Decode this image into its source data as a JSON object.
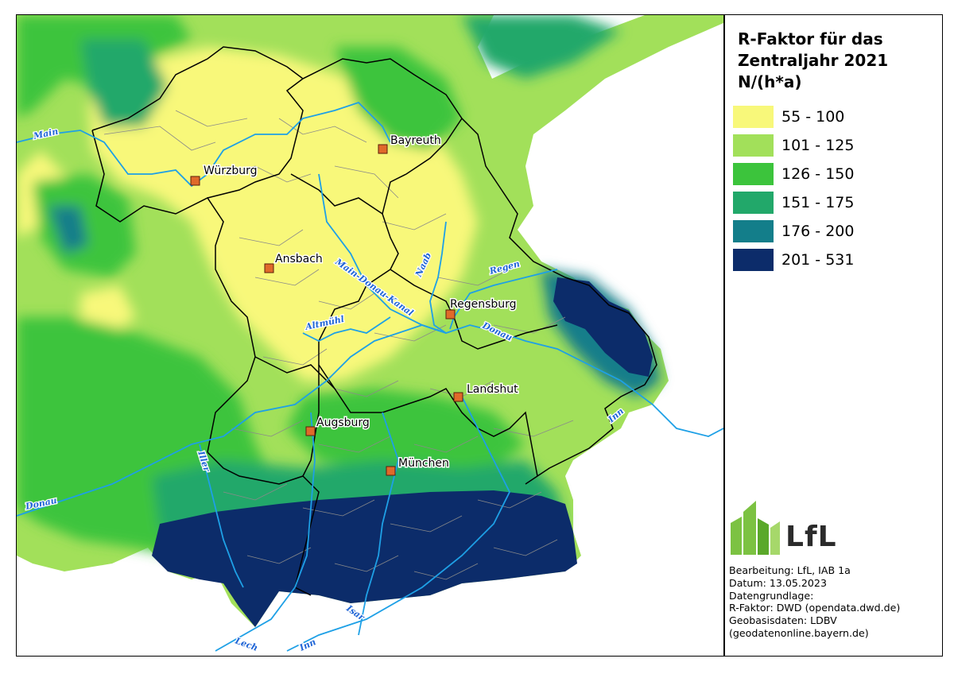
{
  "legend": {
    "title": "R-Faktor für das\nZentraljahr 2021\nN/(h*a)",
    "classes": [
      {
        "label": "55 - 100",
        "color": "#f8f87a"
      },
      {
        "label": "101 - 125",
        "color": "#a2e05a"
      },
      {
        "label": "126 - 150",
        "color": "#3cc43c"
      },
      {
        "label": "151 - 175",
        "color": "#22a86a"
      },
      {
        "label": "176 - 200",
        "color": "#137e8a"
      },
      {
        "label": "201 - 531",
        "color": "#0c2c6a"
      }
    ]
  },
  "cities": [
    {
      "name": "Bayreuth"
    },
    {
      "name": "Würzburg"
    },
    {
      "name": "Ansbach"
    },
    {
      "name": "Regensburg"
    },
    {
      "name": "Landshut"
    },
    {
      "name": "Augsburg"
    },
    {
      "name": "München"
    }
  ],
  "rivers": [
    {
      "name": "Main"
    },
    {
      "name": "Main-Donau-Kanal"
    },
    {
      "name": "Naab"
    },
    {
      "name": "Regen"
    },
    {
      "name": "Altmühl"
    },
    {
      "name": "Donau"
    },
    {
      "name": "Inn"
    },
    {
      "name": "Iller"
    },
    {
      "name": "Donau"
    },
    {
      "name": "Isar"
    },
    {
      "name": "Lech"
    },
    {
      "name": "Inn"
    }
  ],
  "logo": {
    "text": "LfL"
  },
  "credits": [
    "Bearbeitung: LfL, IAB 1a",
    "Datum:  13.05.2023",
    "Datengrundlage:",
    "R-Faktor: DWD (opendata.dwd.de)",
    "Geobasisdaten: LDBV",
    "(geodatenonline.bayern.de)"
  ],
  "colors": {
    "river": "#1ea0e6",
    "city_marker": "#e06a2a",
    "border": "#000000",
    "district": "#888888"
  }
}
